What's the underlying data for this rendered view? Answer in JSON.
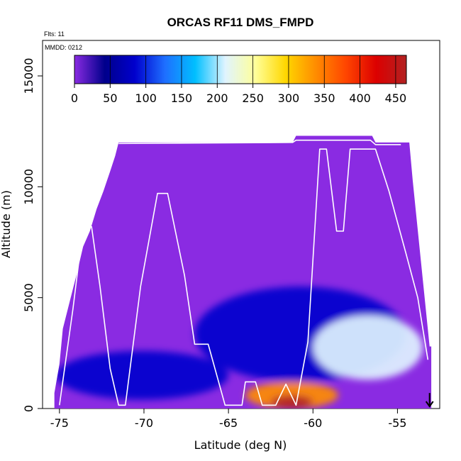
{
  "chart_data": {
    "type": "heatmap",
    "title": "ORCAS RF11 DMS_FMPD",
    "annotations": {
      "flights": "Flts: 11",
      "date": "MMDD: 0212"
    },
    "xlabel": "Latitude (deg N)",
    "ylabel": "Altitude (m)",
    "xlim": [
      -76,
      -52.5
    ],
    "ylim": [
      0,
      16600
    ],
    "x_ticks": [
      -75,
      -70,
      -65,
      -60,
      -55
    ],
    "x_tick_labels": [
      "-75",
      "-70",
      "-65",
      "-60",
      "-55"
    ],
    "y_ticks": [
      0,
      5000,
      10000,
      15000
    ],
    "y_tick_labels": [
      "0",
      "5000",
      "10000",
      "15000"
    ],
    "colorbar": {
      "range": [
        0,
        465
      ],
      "ticks": [
        0,
        50,
        100,
        150,
        200,
        250,
        300,
        350,
        400,
        450
      ],
      "tick_labels": [
        "0",
        "50",
        "100",
        "150",
        "200",
        "250",
        "300",
        "350",
        "400",
        "450"
      ],
      "colors": [
        "#8a2be2",
        "#00008b",
        "#0000cd",
        "#1e6fff",
        "#00bfff",
        "#e0f4ff",
        "#ffff99",
        "#ffd700",
        "#ff8c00",
        "#ff4500",
        "#dc0000",
        "#b22222"
      ],
      "position": "top-inside"
    },
    "grid": false,
    "domain_profile": [
      {
        "lat": -75.3,
        "top": 700
      },
      {
        "lat": -75.0,
        "top": 2000
      },
      {
        "lat": -74.8,
        "top": 3600
      },
      {
        "lat": -74.4,
        "top": 4800
      },
      {
        "lat": -74.0,
        "top": 6000
      },
      {
        "lat": -73.6,
        "top": 7300
      },
      {
        "lat": -73.2,
        "top": 8000
      },
      {
        "lat": -72.8,
        "top": 9000
      },
      {
        "lat": -72.4,
        "top": 9800
      },
      {
        "lat": -72.0,
        "top": 10700
      },
      {
        "lat": -71.7,
        "top": 11400
      },
      {
        "lat": -71.5,
        "top": 12000
      },
      {
        "lat": -61.2,
        "top": 12000
      },
      {
        "lat": -61.0,
        "top": 12300
      },
      {
        "lat": -56.5,
        "top": 12300
      },
      {
        "lat": -56.3,
        "top": 12000
      },
      {
        "lat": -54.3,
        "top": 12000
      },
      {
        "lat": -54.1,
        "top": 10300
      },
      {
        "lat": -53.9,
        "top": 8800
      },
      {
        "lat": -53.7,
        "top": 7300
      },
      {
        "lat": -53.5,
        "top": 5800
      },
      {
        "lat": -53.3,
        "top": 4300
      },
      {
        "lat": -53.1,
        "top": 2800
      },
      {
        "lat": -53.0,
        "top": 2800
      }
    ],
    "features": [
      {
        "name": "low-level blue band",
        "lat": [
          -75.2,
          -65.0
        ],
        "alt": [
          400,
          2600
        ],
        "value": 90
      },
      {
        "name": "mid-level blue arc",
        "lat": [
          -67.0,
          -54.5
        ],
        "alt": [
          1200,
          5500
        ],
        "value": 110
      },
      {
        "name": "mid-level light blue core",
        "lat": [
          -60.0,
          -53.5
        ],
        "alt": [
          1300,
          4200
        ],
        "value": 200
      },
      {
        "name": "surface high-value plume",
        "lat": [
          -64.0,
          -58.5
        ],
        "alt": [
          0,
          1200
        ],
        "value": 330
      },
      {
        "name": "surface peak",
        "lat": [
          -62.5,
          -60.0
        ],
        "alt": [
          0,
          600
        ],
        "value": 430
      }
    ],
    "flight_track": [
      {
        "lat": -75.0,
        "alt": 150
      },
      {
        "lat": -74.2,
        "alt": 4500
      },
      {
        "lat": -73.6,
        "alt": 8200
      },
      {
        "lat": -73.1,
        "alt": 8200
      },
      {
        "lat": -72.6,
        "alt": 5500
      },
      {
        "lat": -72.0,
        "alt": 1800
      },
      {
        "lat": -71.5,
        "alt": 150
      },
      {
        "lat": -71.1,
        "alt": 150
      },
      {
        "lat": -70.2,
        "alt": 5500
      },
      {
        "lat": -69.2,
        "alt": 9700
      },
      {
        "lat": -68.6,
        "alt": 9700
      },
      {
        "lat": -67.6,
        "alt": 6000
      },
      {
        "lat": -67.0,
        "alt": 2900
      },
      {
        "lat": -66.2,
        "alt": 2900
      },
      {
        "lat": -65.2,
        "alt": 150
      },
      {
        "lat": -64.2,
        "alt": 150
      },
      {
        "lat": -64.0,
        "alt": 1200
      },
      {
        "lat": -63.4,
        "alt": 1200
      },
      {
        "lat": -63.0,
        "alt": 150
      },
      {
        "lat": -62.2,
        "alt": 150
      },
      {
        "lat": -61.6,
        "alt": 1100
      },
      {
        "lat": -61.0,
        "alt": 150
      },
      {
        "lat": -60.3,
        "alt": 3000
      },
      {
        "lat": -59.6,
        "alt": 11700
      },
      {
        "lat": -59.2,
        "alt": 11700
      },
      {
        "lat": -58.6,
        "alt": 8000
      },
      {
        "lat": -58.2,
        "alt": 8000
      },
      {
        "lat": -57.8,
        "alt": 11700
      },
      {
        "lat": -56.3,
        "alt": 11700
      },
      {
        "lat": -55.5,
        "alt": 9800
      },
      {
        "lat": -54.5,
        "alt": 7000
      },
      {
        "lat": -53.8,
        "alt": 5000
      },
      {
        "lat": -53.2,
        "alt": 2200
      }
    ],
    "flight_track_upper": [
      {
        "lat": -71.5,
        "alt": 11950
      },
      {
        "lat": -61.2,
        "alt": 12000
      },
      {
        "lat": -61.0,
        "alt": 12100
      },
      {
        "lat": -56.6,
        "alt": 12100
      },
      {
        "lat": -56.3,
        "alt": 11900
      },
      {
        "lat": -54.8,
        "alt": 11900
      }
    ],
    "marker": {
      "type": "down-arrow",
      "lat": -53.1,
      "alt_range": [
        700,
        0
      ]
    }
  }
}
